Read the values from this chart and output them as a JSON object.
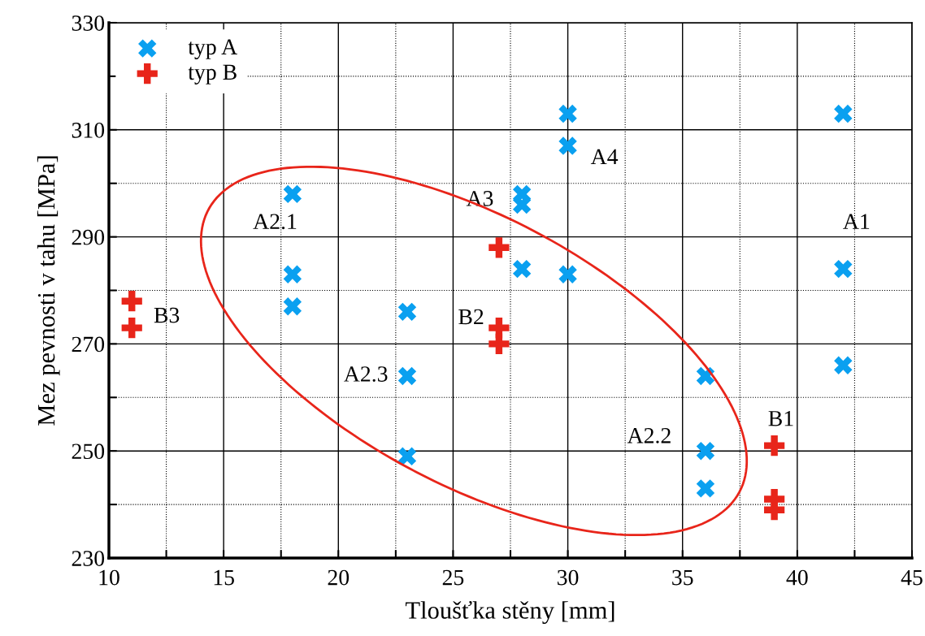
{
  "chart_data": {
    "type": "scatter",
    "xlabel": "Tloušťka stěny [mm]",
    "ylabel": "Mez pevnosti v tahu [MPa]",
    "xlim": [
      10,
      45
    ],
    "ylim": [
      230,
      330
    ],
    "xticks": [
      10,
      {
        "value": 12.5,
        "label": null
      },
      15,
      {
        "value": 17.5,
        "label": null
      },
      20,
      {
        "value": 22.5,
        "label": null
      },
      25,
      {
        "value": 27.5,
        "label": null
      },
      30,
      {
        "value": 32.5,
        "label": null
      },
      35,
      {
        "value": 37.5,
        "label": null
      },
      40,
      {
        "value": 42.5,
        "label": null
      },
      45
    ],
    "yticks": [
      230,
      {
        "value": 240,
        "label": null
      },
      250,
      {
        "value": 260,
        "label": null
      },
      270,
      {
        "value": 280,
        "label": null
      },
      290,
      {
        "value": 300,
        "label": null
      },
      310,
      {
        "value": 320,
        "label": null
      },
      330
    ],
    "grid": true,
    "legend": "top left",
    "series": [
      {
        "name": "typ A",
        "color": "#0aa0f0",
        "marker": "cross",
        "x": [
          18,
          18,
          18,
          23,
          23,
          23,
          28,
          28,
          28,
          30,
          30,
          30,
          36,
          36,
          36,
          42,
          42,
          42
        ],
        "values": [
          298,
          283,
          277,
          276,
          264,
          249,
          298,
          296,
          284,
          313,
          307,
          283,
          264,
          250,
          243,
          313,
          284,
          266
        ]
      },
      {
        "name": "typ B",
        "color": "#e8251a",
        "x": [
          11,
          11,
          27,
          27,
          27,
          39,
          39,
          39
        ],
        "values": [
          278,
          273,
          288,
          273,
          270,
          251,
          241,
          239
        ]
      }
    ],
    "annotations": [
      "A2.1",
      "A3",
      "A4",
      "A1",
      "B3",
      "B2",
      "A2.3",
      "A2.2",
      "B1"
    ]
  }
}
